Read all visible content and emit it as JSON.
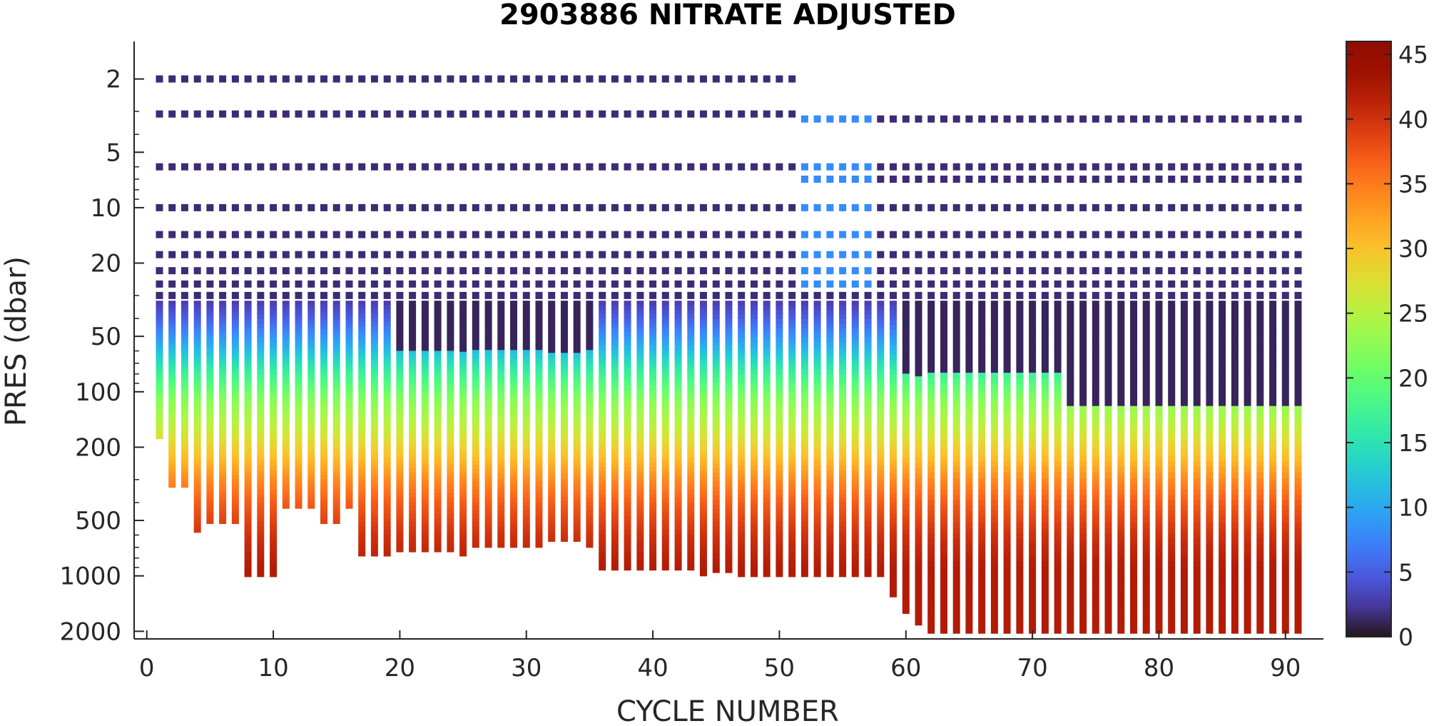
{
  "chart_data": {
    "type": "scatter",
    "title": "2903886  NITRATE ADJUSTED",
    "xlabel": "CYCLE NUMBER",
    "ylabel": "PRES (dbar)",
    "xlim": [
      -1,
      93
    ],
    "ylim": [
      1.25,
      2200
    ],
    "yscale": "log",
    "y_reversed": true,
    "x_ticks": [
      0,
      10,
      20,
      30,
      40,
      50,
      60,
      70,
      80,
      90
    ],
    "y_ticks": [
      2,
      5,
      10,
      20,
      50,
      100,
      200,
      500,
      1000,
      2000
    ],
    "grid": false,
    "colorbar": {
      "label": "",
      "range": [
        0,
        46
      ],
      "ticks": [
        0,
        5,
        10,
        15,
        20,
        25,
        30,
        35,
        40,
        45
      ],
      "colormap": "turbo"
    },
    "cycles": {
      "first": 1,
      "last": 91,
      "bottom_pressures": [
        {
          "cycles": [
            1,
            1
          ],
          "pres": 180
        },
        {
          "cycles": [
            2,
            3
          ],
          "pres": 330
        },
        {
          "cycles": [
            4,
            4
          ],
          "pres": 580
        },
        {
          "cycles": [
            5,
            7
          ],
          "pres": 520
        },
        {
          "cycles": [
            8,
            10
          ],
          "pres": 1010
        },
        {
          "cycles": [
            11,
            13
          ],
          "pres": 430
        },
        {
          "cycles": [
            14,
            15
          ],
          "pres": 520
        },
        {
          "cycles": [
            16,
            16
          ],
          "pres": 430
        },
        {
          "cycles": [
            17,
            19
          ],
          "pres": 780
        },
        {
          "cycles": [
            20,
            24
          ],
          "pres": 740
        },
        {
          "cycles": [
            25,
            25
          ],
          "pres": 780
        },
        {
          "cycles": [
            26,
            31
          ],
          "pres": 700
        },
        {
          "cycles": [
            32,
            34
          ],
          "pres": 650
        },
        {
          "cycles": [
            35,
            35
          ],
          "pres": 700
        },
        {
          "cycles": [
            36,
            43
          ],
          "pres": 930
        },
        {
          "cycles": [
            44,
            44
          ],
          "pres": 1000
        },
        {
          "cycles": [
            45,
            46
          ],
          "pres": 960
        },
        {
          "cycles": [
            47,
            57
          ],
          "pres": 1010
        },
        {
          "cycles": [
            58,
            58
          ],
          "pres": 1010
        },
        {
          "cycles": [
            59,
            59
          ],
          "pres": 1300
        },
        {
          "cycles": [
            60,
            60
          ],
          "pres": 1600
        },
        {
          "cycles": [
            61,
            61
          ],
          "pres": 1850
        },
        {
          "cycles": [
            62,
            91
          ],
          "pres": 2050
        }
      ],
      "profile_nitrate": [
        {
          "pres": 1,
          "nitrate": 1
        },
        {
          "pres": 30,
          "nitrate": 2
        },
        {
          "pres": 40,
          "nitrate": 5
        },
        {
          "pres": 55,
          "nitrate": 10
        },
        {
          "pres": 80,
          "nitrate": 17
        },
        {
          "pres": 110,
          "nitrate": 22
        },
        {
          "pres": 160,
          "nitrate": 26
        },
        {
          "pres": 220,
          "nitrate": 30
        },
        {
          "pres": 300,
          "nitrate": 34
        },
        {
          "pres": 400,
          "nitrate": 37
        },
        {
          "pres": 600,
          "nitrate": 40
        },
        {
          "pres": 900,
          "nitrate": 42
        },
        {
          "pres": 2000,
          "nitrate": 42
        }
      ],
      "depleted_surface_layer": [
        {
          "cycles": [
            20,
            35
          ],
          "pres": 60
        },
        {
          "cycles": [
            60,
            72
          ],
          "pres": 80
        },
        {
          "cycles": [
            73,
            91
          ],
          "pres": 120
        }
      ]
    }
  }
}
